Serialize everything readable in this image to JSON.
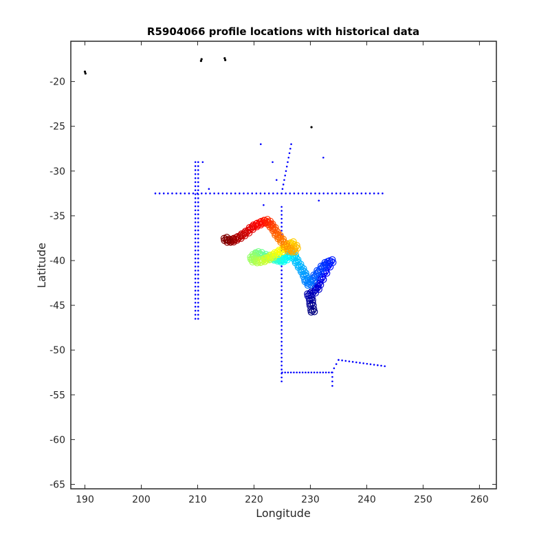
{
  "chart_data": {
    "type": "scatter",
    "title": "R5904066 profile locations with historical data",
    "xlabel": "Longitude",
    "ylabel": "Latitude",
    "xlim": [
      187.5,
      263
    ],
    "ylim": [
      -65.5,
      -15.5
    ],
    "xticks": [
      190,
      200,
      210,
      220,
      230,
      240,
      250,
      260
    ],
    "yticks": [
      -20,
      -25,
      -30,
      -35,
      -40,
      -45,
      -50,
      -55,
      -60,
      -65
    ],
    "grid": false,
    "legend": "none",
    "colors": {
      "historical": "#0000ff",
      "other": "#000000",
      "axis": "#262626"
    },
    "series": [
      {
        "marker": "dot",
        "color": "#000000",
        "points": [
          [
            190.0,
            -18.9
          ],
          [
            190.1,
            -19.1
          ],
          [
            210.7,
            -17.5
          ],
          [
            210.6,
            -17.7
          ],
          [
            214.8,
            -17.4
          ],
          [
            214.9,
            -17.6
          ],
          [
            230.2,
            -25.1
          ]
        ]
      },
      {
        "marker": "dot",
        "color": "#0000ff",
        "segments": [
          {
            "from": [
              202.5,
              -32.5
            ],
            "to": [
              242.8,
              -32.5
            ],
            "count": 55
          },
          {
            "from": [
              209.6,
              -29.0
            ],
            "to": [
              209.6,
              -46.5
            ],
            "count": 40
          },
          {
            "from": [
              210.1,
              -29.0
            ],
            "to": [
              210.1,
              -46.5
            ],
            "count": 40
          },
          {
            "from": [
              224.9,
              -34.0
            ],
            "to": [
              224.9,
              -53.5
            ],
            "count": 45
          },
          {
            "from": [
              224.9,
              -32.5
            ],
            "to": [
              226.6,
              -27.0
            ],
            "count": 12
          },
          {
            "from": [
              225.0,
              -52.5
            ],
            "to": [
              233.8,
              -52.5
            ],
            "count": 18
          },
          {
            "from": [
              233.8,
              -52.5
            ],
            "to": [
              235.0,
              -51.1
            ],
            "count": 4
          },
          {
            "from": [
              235.0,
              -51.1
            ],
            "to": [
              243.2,
              -51.8
            ],
            "count": 14
          },
          {
            "from": [
              233.9,
              -52.5
            ],
            "to": [
              233.9,
              -54.0
            ],
            "count": 4
          }
        ],
        "points": [
          [
            221.2,
            -27.0
          ],
          [
            223.3,
            -29.0
          ],
          [
            232.3,
            -28.5
          ],
          [
            224.0,
            -31.0
          ],
          [
            212.0,
            -32.0
          ],
          [
            231.5,
            -33.3
          ],
          [
            221.7,
            -33.8
          ],
          [
            210.9,
            -29.0
          ]
        ]
      },
      {
        "marker": "circle",
        "color_scale": "jet",
        "color_order": "first profile = dark blue, last profile = dark red",
        "points": [
          [
            230.4,
            -45.6
          ],
          [
            230.2,
            -44.9
          ],
          [
            230.1,
            -44.3
          ],
          [
            229.8,
            -43.8
          ],
          [
            230.6,
            -43.5
          ],
          [
            231.2,
            -43.1
          ],
          [
            231.5,
            -42.6
          ],
          [
            232.0,
            -42.0
          ],
          [
            232.6,
            -41.3
          ],
          [
            233.2,
            -40.6
          ],
          [
            233.7,
            -40.1
          ],
          [
            232.9,
            -40.3
          ],
          [
            232.2,
            -40.7
          ],
          [
            231.5,
            -41.2
          ],
          [
            230.9,
            -41.7
          ],
          [
            230.3,
            -42.2
          ],
          [
            229.8,
            -42.6
          ],
          [
            229.3,
            -42.2
          ],
          [
            229.0,
            -41.6
          ],
          [
            228.6,
            -41.1
          ],
          [
            228.1,
            -40.6
          ],
          [
            227.6,
            -40.1
          ],
          [
            227.2,
            -39.6
          ],
          [
            226.7,
            -39.2
          ],
          [
            226.2,
            -39.5
          ],
          [
            225.6,
            -39.8
          ],
          [
            225.0,
            -40.0
          ],
          [
            224.4,
            -39.9
          ],
          [
            223.8,
            -39.8
          ],
          [
            223.2,
            -39.7
          ],
          [
            222.6,
            -39.6
          ],
          [
            221.9,
            -39.5
          ],
          [
            221.2,
            -39.3
          ],
          [
            220.6,
            -39.2
          ],
          [
            220.1,
            -39.4
          ],
          [
            219.7,
            -39.7
          ],
          [
            220.0,
            -40.0
          ],
          [
            220.8,
            -40.1
          ],
          [
            221.6,
            -40.0
          ],
          [
            222.4,
            -39.8
          ],
          [
            223.2,
            -39.5
          ],
          [
            224.0,
            -39.2
          ],
          [
            224.8,
            -38.9
          ],
          [
            225.5,
            -38.6
          ],
          [
            226.1,
            -38.3
          ],
          [
            226.8,
            -38.1
          ],
          [
            227.4,
            -38.5
          ],
          [
            227.0,
            -38.9
          ],
          [
            226.3,
            -38.8
          ],
          [
            225.6,
            -38.3
          ],
          [
            225.0,
            -37.8
          ],
          [
            224.5,
            -37.4
          ],
          [
            224.0,
            -37.0
          ],
          [
            223.6,
            -36.5
          ],
          [
            223.1,
            -36.1
          ],
          [
            222.7,
            -35.8
          ],
          [
            222.2,
            -35.6
          ],
          [
            221.6,
            -35.7
          ],
          [
            220.9,
            -35.9
          ],
          [
            220.2,
            -36.1
          ],
          [
            219.5,
            -36.4
          ],
          [
            218.8,
            -36.8
          ],
          [
            218.1,
            -37.1
          ],
          [
            217.4,
            -37.4
          ],
          [
            216.7,
            -37.6
          ],
          [
            216.1,
            -37.8
          ],
          [
            215.5,
            -37.8
          ],
          [
            215.0,
            -37.6
          ]
        ]
      }
    ]
  }
}
